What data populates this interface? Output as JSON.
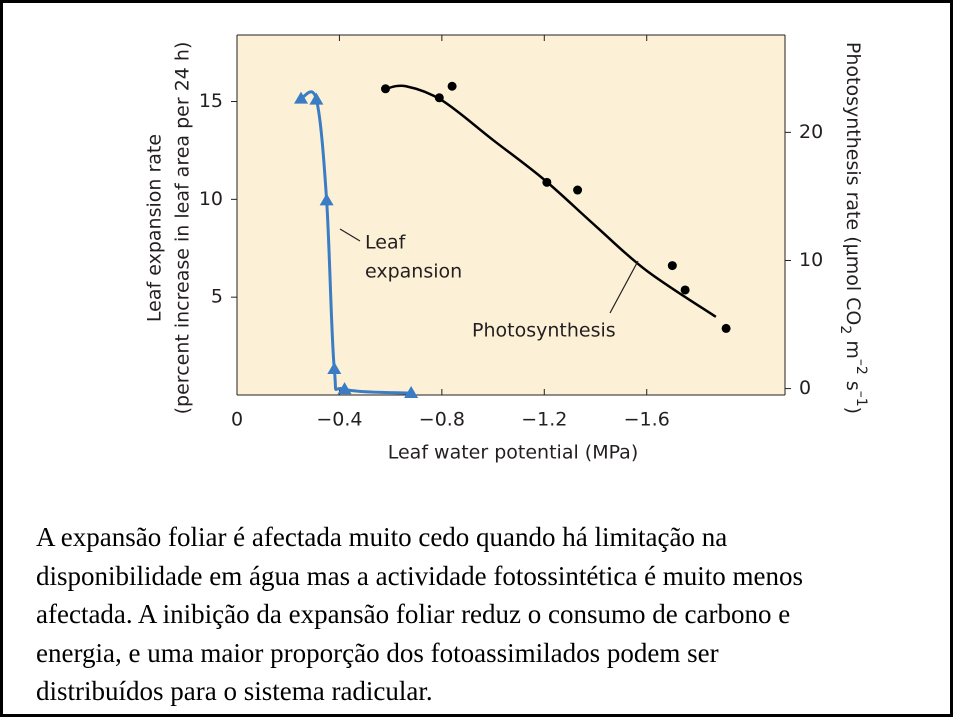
{
  "chart_data": {
    "type": "scatter",
    "xlabel": "Leaf water potential (MPa)",
    "ylabel": [
      "Leaf expansion rate",
      "(percent increase in leaf area per 24 h)"
    ],
    "y2label": [
      "Photosynthesis rate (μmol CO",
      "2",
      " m",
      "–2",
      " s",
      "–1",
      ")"
    ],
    "annotations": [
      "Leaf",
      "expansion",
      "Photosynthesis"
    ],
    "xlim": [
      0,
      -2.14
    ],
    "xticks": [
      0,
      {
        "value": -0.4,
        "label": "−0.4"
      },
      {
        "value": -0.8,
        "label": "−0.8"
      },
      {
        "value": -1.2,
        "label": "−1.2"
      },
      {
        "value": -1.6,
        "label": "−1.6"
      }
    ],
    "ylim": [
      0,
      18.4
    ],
    "yticks": [
      5,
      10,
      15
    ],
    "y2lim": [
      -0.5,
      27.6
    ],
    "y2ticks": [
      0,
      10,
      20
    ],
    "grid": false,
    "background": "#fcf1d6",
    "series": [
      {
        "color": "#3b7dc4",
        "marker": "triangle",
        "axis": "y",
        "curve": "smooth",
        "x": [
          -0.25,
          -0.31,
          -0.35,
          -0.38,
          -0.42,
          -0.68
        ],
        "values": [
          15.15,
          15.1,
          9.95,
          1.33,
          0.3,
          0.1
        ]
      },
      {
        "color": "#000000",
        "marker": "circle",
        "axis": "y2",
        "curve": "none",
        "x": [
          -0.58,
          -0.79,
          -0.84,
          -1.21,
          -1.33,
          -1.7,
          -1.75,
          -1.91
        ],
        "values": [
          23.4,
          22.7,
          23.6,
          16.1,
          15.5,
          9.6,
          7.7,
          4.7
        ]
      },
      {
        "color": "#000000",
        "marker": "none",
        "axis": "y2",
        "curve": "smooth",
        "x": [
          -0.58,
          -0.66,
          -0.8,
          -1.0,
          -1.2,
          -1.4,
          -1.6,
          -1.87
        ],
        "values": [
          23.4,
          23.6,
          22.5,
          19.4,
          16.3,
          12.7,
          9.2,
          5.6
        ]
      }
    ]
  },
  "caption": [
    "A expansão foliar é afectada muito cedo quando há limitação na",
    "disponibilidade em água mas a actividade fotossintética é muito menos",
    "afectada. A inibição da expansão foliar reduz o consumo de carbono e",
    "energia, e uma maior proporção dos fotoassimilados podem ser",
    "distribuídos para o sistema radicular."
  ]
}
